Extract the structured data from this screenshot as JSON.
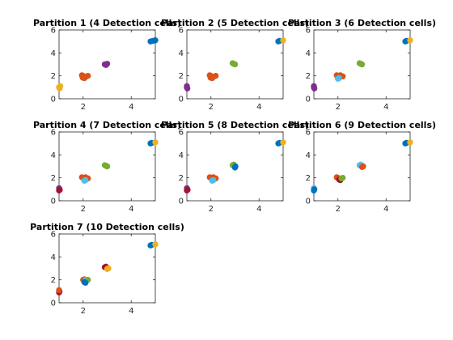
{
  "figure": {
    "background": "#ffffff",
    "colors": {
      "blue": "#0072BD",
      "orange": "#D95319",
      "yellow": "#EDB120",
      "purple": "#7E2F8E",
      "green": "#77AC30",
      "cyan": "#4DBEEE",
      "maroon": "#A2142F"
    }
  },
  "chart_data": [
    {
      "type": "scatter",
      "title": "Partition 1 (4 Detection cells)",
      "xlim": [
        1,
        5
      ],
      "ylim": [
        0,
        6
      ],
      "xticks": [
        2,
        4
      ],
      "yticks": [
        0,
        2,
        4,
        6
      ],
      "grid": false,
      "clusters": [
        {
          "color": "yellow",
          "points": [
            [
              1.0,
              1.0
            ],
            [
              1.05,
              1.1
            ],
            [
              1.02,
              0.9
            ]
          ]
        },
        {
          "color": "orange",
          "points": [
            [
              2.0,
              2.0
            ],
            [
              2.1,
              1.9
            ],
            [
              1.95,
              2.05
            ],
            [
              2.05,
              1.8
            ],
            [
              2.2,
              2.0
            ],
            [
              1.98,
              1.85
            ]
          ]
        },
        {
          "color": "purple",
          "points": [
            [
              2.9,
              3.0
            ],
            [
              3.0,
              3.05
            ],
            [
              2.95,
              2.95
            ]
          ]
        },
        {
          "color": "blue",
          "points": [
            [
              4.8,
              5.0
            ],
            [
              5.0,
              5.1
            ],
            [
              4.9,
              5.05
            ]
          ]
        }
      ]
    },
    {
      "type": "scatter",
      "title": "Partition 2 (5 Detection cells)",
      "xlim": [
        1,
        5
      ],
      "ylim": [
        0,
        6
      ],
      "xticks": [
        2,
        4
      ],
      "yticks": [
        0,
        2,
        4,
        6
      ],
      "grid": false,
      "clusters": [
        {
          "color": "purple",
          "points": [
            [
              1.0,
              1.0
            ],
            [
              1.02,
              0.9
            ],
            [
              1.0,
              1.1
            ]
          ]
        },
        {
          "color": "orange",
          "points": [
            [
              2.0,
              2.0
            ],
            [
              2.1,
              1.9
            ],
            [
              1.95,
              2.05
            ],
            [
              2.05,
              1.8
            ],
            [
              2.2,
              2.0
            ],
            [
              1.98,
              1.85
            ]
          ]
        },
        {
          "color": "green",
          "points": [
            [
              2.9,
              3.1
            ],
            [
              3.0,
              3.0
            ],
            [
              2.95,
              3.05
            ]
          ]
        },
        {
          "color": "blue",
          "points": [
            [
              4.8,
              5.0
            ],
            [
              4.85,
              5.05
            ]
          ]
        },
        {
          "color": "yellow",
          "points": [
            [
              5.0,
              5.1
            ]
          ]
        }
      ]
    },
    {
      "type": "scatter",
      "title": "Partition 3 (6 Detection cells)",
      "xlim": [
        1,
        5
      ],
      "ylim": [
        0,
        6
      ],
      "xticks": [
        2,
        4
      ],
      "yticks": [
        0,
        2,
        4,
        6
      ],
      "grid": false,
      "clusters": [
        {
          "color": "purple",
          "points": [
            [
              1.0,
              1.0
            ],
            [
              1.02,
              0.9
            ],
            [
              1.0,
              1.1
            ]
          ]
        },
        {
          "color": "orange",
          "points": [
            [
              2.0,
              2.0
            ],
            [
              2.1,
              2.05
            ],
            [
              2.2,
              1.95
            ],
            [
              1.95,
              2.05
            ]
          ]
        },
        {
          "color": "cyan",
          "points": [
            [
              2.05,
              1.8
            ],
            [
              2.0,
              1.75
            ]
          ]
        },
        {
          "color": "green",
          "points": [
            [
              2.9,
              3.1
            ],
            [
              3.0,
              3.0
            ],
            [
              2.95,
              3.05
            ]
          ]
        },
        {
          "color": "blue",
          "points": [
            [
              4.8,
              5.0
            ],
            [
              4.85,
              5.05
            ]
          ]
        },
        {
          "color": "yellow",
          "points": [
            [
              5.0,
              5.1
            ]
          ]
        }
      ]
    },
    {
      "type": "scatter",
      "title": "Partition 4 (7 Detection cells)",
      "xlim": [
        1,
        5
      ],
      "ylim": [
        0,
        6
      ],
      "xticks": [
        2,
        4
      ],
      "yticks": [
        0,
        2,
        4,
        6
      ],
      "grid": false,
      "clusters": [
        {
          "color": "purple",
          "points": [
            [
              1.0,
              1.1
            ],
            [
              1.02,
              1.0
            ]
          ]
        },
        {
          "color": "maroon",
          "points": [
            [
              1.0,
              0.9
            ],
            [
              1.03,
              0.95
            ]
          ]
        },
        {
          "color": "orange",
          "points": [
            [
              2.0,
              2.0
            ],
            [
              2.1,
              2.05
            ],
            [
              2.2,
              1.95
            ],
            [
              1.95,
              2.05
            ]
          ]
        },
        {
          "color": "cyan",
          "points": [
            [
              2.1,
              1.8
            ],
            [
              2.05,
              1.75
            ]
          ]
        },
        {
          "color": "green",
          "points": [
            [
              2.9,
              3.1
            ],
            [
              3.0,
              3.0
            ],
            [
              2.95,
              3.05
            ]
          ]
        },
        {
          "color": "blue",
          "points": [
            [
              4.8,
              5.0
            ],
            [
              4.85,
              5.05
            ]
          ]
        },
        {
          "color": "yellow",
          "points": [
            [
              5.0,
              5.1
            ]
          ]
        }
      ]
    },
    {
      "type": "scatter",
      "title": "Partition 5 (8 Detection cells)",
      "xlim": [
        1,
        5
      ],
      "ylim": [
        0,
        6
      ],
      "xticks": [
        2,
        4
      ],
      "yticks": [
        0,
        2,
        4,
        6
      ],
      "grid": false,
      "clusters": [
        {
          "color": "purple",
          "points": [
            [
              1.0,
              1.1
            ],
            [
              1.02,
              1.0
            ]
          ]
        },
        {
          "color": "maroon",
          "points": [
            [
              1.0,
              0.9
            ],
            [
              1.03,
              0.95
            ]
          ]
        },
        {
          "color": "orange",
          "points": [
            [
              2.0,
              2.0
            ],
            [
              2.1,
              2.05
            ],
            [
              2.2,
              1.95
            ],
            [
              1.95,
              2.05
            ]
          ]
        },
        {
          "color": "cyan",
          "points": [
            [
              2.1,
              1.8
            ],
            [
              2.05,
              1.75
            ]
          ]
        },
        {
          "color": "green",
          "points": [
            [
              2.9,
              3.1
            ],
            [
              2.95,
              3.15
            ]
          ]
        },
        {
          "color": "blue",
          "points": [
            [
              3.0,
              2.9
            ],
            [
              3.02,
              3.0
            ],
            [
              4.8,
              5.0
            ],
            [
              4.85,
              5.05
            ]
          ]
        },
        {
          "color": "yellow",
          "points": [
            [
              5.0,
              5.1
            ]
          ]
        }
      ]
    },
    {
      "type": "scatter",
      "title": "Partition 6 (9 Detection cells)",
      "xlim": [
        1,
        5
      ],
      "ylim": [
        0,
        6
      ],
      "xticks": [
        2,
        4
      ],
      "yticks": [
        0,
        2,
        4,
        6
      ],
      "grid": false,
      "clusters": [
        {
          "color": "cyan",
          "points": [
            [
              1.0,
              1.1
            ]
          ]
        },
        {
          "color": "blue",
          "points": [
            [
              1.0,
              0.9
            ],
            [
              1.02,
              1.0
            ],
            [
              4.8,
              5.0
            ],
            [
              4.85,
              5.05
            ]
          ]
        },
        {
          "color": "orange",
          "points": [
            [
              1.95,
              2.05
            ],
            [
              2.0,
              2.0
            ]
          ]
        },
        {
          "color": "maroon",
          "points": [
            [
              2.1,
              1.8
            ],
            [
              2.05,
              1.85
            ]
          ]
        },
        {
          "color": "green",
          "points": [
            [
              2.2,
              2.0
            ],
            [
              2.15,
              1.95
            ]
          ]
        },
        {
          "color": "cyan",
          "points": [
            [
              2.9,
              3.1
            ],
            [
              2.95,
              3.15
            ]
          ]
        },
        {
          "color": "orange",
          "points": [
            [
              3.0,
              2.95
            ],
            [
              3.05,
              3.0
            ]
          ]
        },
        {
          "color": "yellow",
          "points": [
            [
              5.0,
              5.1
            ]
          ]
        }
      ]
    },
    {
      "type": "scatter",
      "title": "Partition 7 (10 Detection cells)",
      "xlim": [
        1,
        5
      ],
      "ylim": [
        0,
        6
      ],
      "xticks": [
        2,
        4
      ],
      "yticks": [
        0,
        2,
        4,
        6
      ],
      "grid": false,
      "clusters": [
        {
          "color": "maroon",
          "points": [
            [
              1.0,
              0.9
            ],
            [
              1.02,
              1.0
            ]
          ]
        },
        {
          "color": "orange",
          "points": [
            [
              1.0,
              1.1
            ],
            [
              2.0,
              2.0
            ],
            [
              2.05,
              2.05
            ]
          ]
        },
        {
          "color": "cyan",
          "points": [
            [
              2.1,
              2.0
            ],
            [
              2.15,
              1.95
            ]
          ]
        },
        {
          "color": "green",
          "points": [
            [
              2.2,
              2.0
            ]
          ]
        },
        {
          "color": "blue",
          "points": [
            [
              2.05,
              1.8
            ],
            [
              2.1,
              1.75
            ],
            [
              4.8,
              5.0
            ],
            [
              4.85,
              5.05
            ]
          ]
        },
        {
          "color": "maroon",
          "points": [
            [
              2.9,
              3.1
            ],
            [
              2.95,
              3.15
            ]
          ]
        },
        {
          "color": "yellow",
          "points": [
            [
              3.0,
              2.95
            ],
            [
              3.05,
              3.0
            ],
            [
              5.0,
              5.1
            ]
          ]
        }
      ]
    }
  ]
}
